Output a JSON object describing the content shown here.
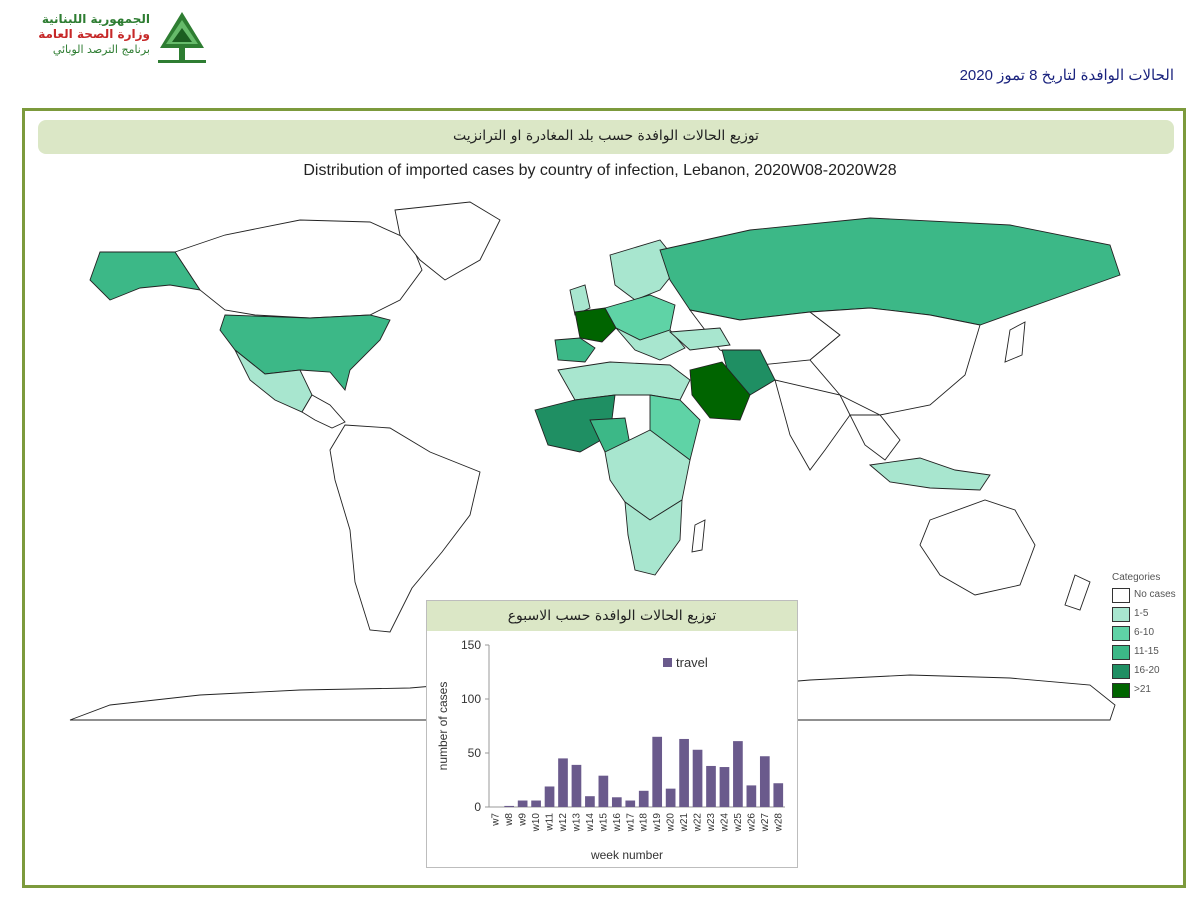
{
  "logo": {
    "line1": "الجمهورية اللبنانية",
    "line2": "وزارة الصحة العامة",
    "line3": "برنامج الترصد الوبائي"
  },
  "report_date": "الحالات الوافدة لتاريخ 8 تموز 2020",
  "map": {
    "arabic_header": "توزيع الحالات الوافدة حسب بلد المغادرة او الترانزيت",
    "title": "Distribution of imported cases by country of infection, Lebanon, 2020W08-2020W28",
    "legend_title": "Categories",
    "legend": [
      {
        "label": "No cases",
        "color": "#ffffff"
      },
      {
        "label": "1-5",
        "color": "#a8e6cf"
      },
      {
        "label": "6-10",
        "color": "#5fd3a6"
      },
      {
        "label": "11-15",
        "color": "#3cb887"
      },
      {
        "label": "16-20",
        "color": "#1f8f63"
      },
      {
        "label": ">21",
        "color": "#006400"
      }
    ],
    "highlighted_regions": [
      {
        "region": "United States",
        "category": "11-15"
      },
      {
        "region": "Alaska",
        "category": "11-15"
      },
      {
        "region": "Mexico",
        "category": "1-5"
      },
      {
        "region": "Russia",
        "category": "11-15"
      },
      {
        "region": "France",
        "category": ">21"
      },
      {
        "region": "Spain",
        "category": "11-15"
      },
      {
        "region": "Saudi Arabia",
        "category": ">21"
      },
      {
        "region": "Iran",
        "category": "16-20"
      },
      {
        "region": "Nigeria",
        "category": "11-15"
      },
      {
        "region": "West Africa",
        "category": "16-20"
      },
      {
        "region": "Central Africa",
        "category": "1-5"
      },
      {
        "region": "South Africa",
        "category": "1-5"
      },
      {
        "region": "Indonesia",
        "category": "1-5"
      }
    ]
  },
  "chart_data": {
    "type": "bar",
    "arabic_header": "توزيع الحالات الوافدة حسب الاسبوع",
    "categories": [
      "w7",
      "w8",
      "w9",
      "w10",
      "w11",
      "w12",
      "w13",
      "w14",
      "w15",
      "w16",
      "w17",
      "w18",
      "w19",
      "w20",
      "w21",
      "w22",
      "w23",
      "w24",
      "w25",
      "w26",
      "w27",
      "w28"
    ],
    "series": [
      {
        "name": "travel",
        "color": "#6a5a8c",
        "values": [
          0,
          1,
          6,
          6,
          19,
          45,
          39,
          10,
          29,
          9,
          6,
          15,
          65,
          17,
          63,
          53,
          38,
          37,
          61,
          20,
          47,
          22
        ]
      }
    ],
    "xlabel": "week number",
    "ylabel": "number of cases",
    "ylim": [
      0,
      150
    ],
    "yticks": [
      0,
      50,
      100,
      150
    ],
    "grid": false,
    "legend_placement": "top-right"
  }
}
